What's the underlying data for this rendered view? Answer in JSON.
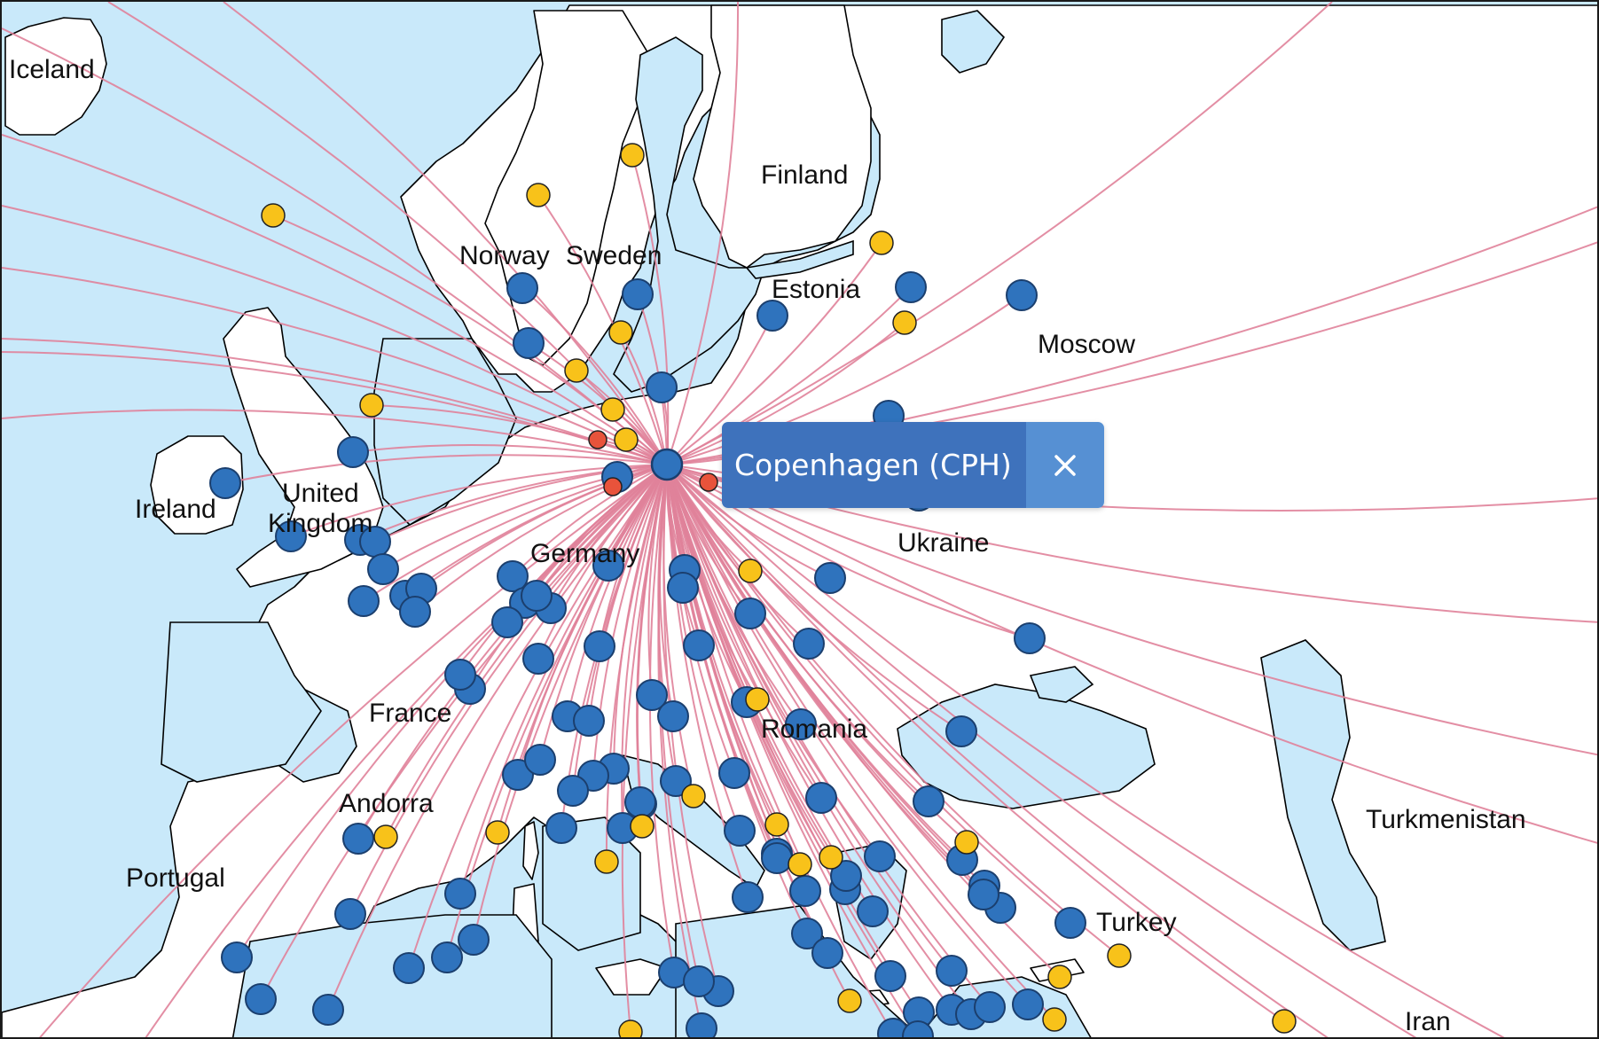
{
  "map": {
    "colors": {
      "water": "#c9e9fa",
      "land": "#ffffff",
      "border": "#000000",
      "route": "#e0829a",
      "hub": "#2f73bd",
      "destination_blue": "#2f73bd",
      "destination_yellow": "#f8c21a",
      "destination_red": "#e8533b"
    },
    "labels": [
      {
        "id": "iceland",
        "text": "Iceland"
      },
      {
        "id": "finland",
        "text": "Finland"
      },
      {
        "id": "norway",
        "text": "Norway"
      },
      {
        "id": "sweden",
        "text": "Sweden"
      },
      {
        "id": "estonia",
        "text": "Estonia"
      },
      {
        "id": "moscow",
        "text": "Moscow"
      },
      {
        "id": "ireland",
        "text": "Ireland"
      },
      {
        "id": "united-kingdom-1",
        "text": "United"
      },
      {
        "id": "united-kingdom-2",
        "text": "Kingdom"
      },
      {
        "id": "germany",
        "text": "Germany"
      },
      {
        "id": "ukraine",
        "text": "Ukraine"
      },
      {
        "id": "france",
        "text": "France"
      },
      {
        "id": "romania",
        "text": "Romania"
      },
      {
        "id": "andorra",
        "text": "Andorra"
      },
      {
        "id": "portugal",
        "text": "Portugal"
      },
      {
        "id": "turkmenistan",
        "text": "Turkmenistan"
      },
      {
        "id": "turkey",
        "text": "Turkey"
      },
      {
        "id": "iran",
        "text": "Iran"
      }
    ],
    "hub": {
      "name": "Copenhagen (CPH)"
    }
  },
  "popup": {
    "label": "Copenhagen (CPH)",
    "close_icon": "close-icon"
  }
}
